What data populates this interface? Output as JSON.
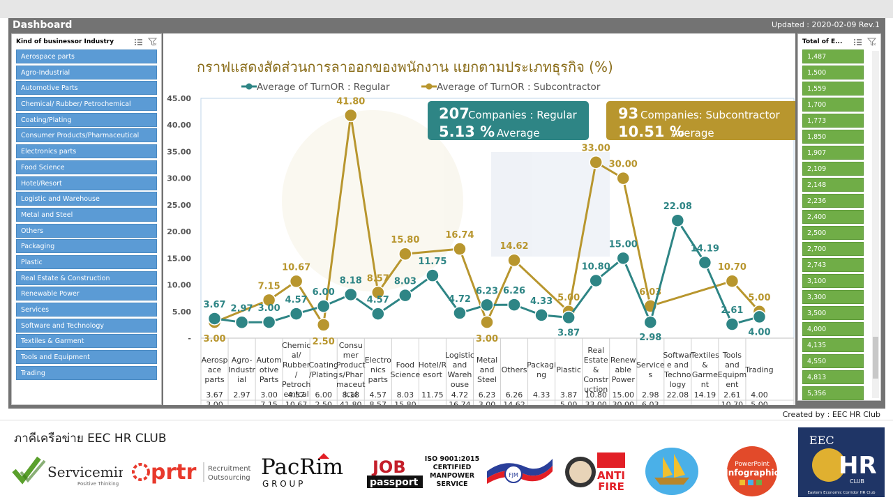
{
  "window": {
    "title": "Dashboard",
    "updated": "Updated : 2020-02-09 Rev.1",
    "created_by": "Created by : EEC HR Club"
  },
  "industry_slicer": {
    "header": "Kind of businessor Industry",
    "items": [
      "Aerospace parts",
      "Agro-Industrial",
      "Automotive Parts",
      "Chemical/ Rubber/ Petrochemical",
      "Coating/Plating",
      "Consumer Products/Pharmaceutical",
      "Electronics parts",
      "Food Science",
      "Hotel/Resort",
      "Logistic and Warehouse",
      "Metal and Steel",
      "Others",
      "Packaging",
      "Plastic",
      "Real Estate & Construction",
      "Renewable Power",
      "Services",
      "Software and Technology",
      "Textiles & Garment",
      "Tools and Equipment",
      "Trading"
    ]
  },
  "total_slicer": {
    "header": "Total of E...",
    "items": [
      "1,487",
      "1,500",
      "1,559",
      "1,700",
      "1,773",
      "1,850",
      "1,907",
      "2,109",
      "2,148",
      "2,236",
      "2,400",
      "2,500",
      "2,700",
      "2,743",
      "3,100",
      "3,300",
      "3,500",
      "4,000",
      "4,135",
      "4,550",
      "4,813",
      "5,356"
    ]
  },
  "cards": {
    "regular": {
      "count": "207",
      "label": "Companies : Regular",
      "avg": "5.13 %",
      "avg_label": "Average",
      "color": "#2e8585"
    },
    "sub": {
      "count": "93",
      "label": "Companies: Subcontractor",
      "avg": "10.51 %",
      "avg_label": "Average",
      "color": "#b8962e"
    }
  },
  "chart_data": {
    "type": "line",
    "title": "กราฟแสดงสัดส่วนการลาออกของพนักงาน แยกตามประเภทธุรกิจ (%)",
    "ylim": [
      0,
      45
    ],
    "yticks": [
      "-",
      "5.00",
      "10.00",
      "15.00",
      "20.00",
      "25.00",
      "30.00",
      "35.00",
      "40.00",
      "45.00"
    ],
    "categories": [
      [
        "Aerosp",
        "ace",
        "parts"
      ],
      [
        "Agro-",
        "Industr",
        "ial"
      ],
      [
        "Autom",
        "otive",
        "Parts"
      ],
      [
        "Chemic",
        "al/",
        "Rubber",
        "/",
        "Petroch",
        "emical"
      ],
      [
        "Coating",
        "/Plating"
      ],
      [
        "Consu",
        "mer",
        "Product",
        "s/Phar",
        "maceut",
        "ical"
      ],
      [
        "Electro",
        "nics",
        "parts"
      ],
      [
        "Food",
        "Science"
      ],
      [
        "Hotel/R",
        "esort"
      ],
      [
        "Logistic",
        "and",
        "Wareh",
        "ouse"
      ],
      [
        "Metal",
        "and",
        "Steel"
      ],
      [
        "Others"
      ],
      [
        "Packagi",
        "ng"
      ],
      [
        "Plastic"
      ],
      [
        "Real",
        "Estate",
        "&",
        "Constr",
        "uction"
      ],
      [
        "Renew",
        "able",
        "Power"
      ],
      [
        "Service",
        "s"
      ],
      [
        "Softwar",
        "e and",
        "Techno",
        "logy"
      ],
      [
        "Textiles",
        "&",
        "Garme",
        "nt"
      ],
      [
        "Tools",
        "and",
        "Equipm",
        "ent"
      ],
      [
        "Trading"
      ]
    ],
    "series": [
      {
        "name": "Average of TurnOR : Regular",
        "color": "#2e8585",
        "values": [
          3.67,
          2.97,
          3.0,
          4.57,
          6.0,
          8.18,
          4.57,
          8.03,
          11.75,
          4.72,
          6.23,
          6.26,
          4.33,
          3.87,
          10.8,
          15.0,
          2.98,
          22.08,
          14.19,
          2.61,
          4.0
        ],
        "labels": [
          "3.67",
          "2.97",
          "3.00",
          "4.57",
          "6.00",
          "8.18",
          "4.57",
          "8.03",
          "11.75",
          "4.72",
          "6.23",
          "6.26",
          "4.33",
          "3.87",
          "10.80",
          "15.00",
          "2.98",
          "22.08",
          "14.19",
          "2.61",
          "4.00"
        ]
      },
      {
        "name": "Average of TurnOR : Subcontractor",
        "color": "#b8962e",
        "values": [
          3.0,
          null,
          7.15,
          10.67,
          2.5,
          41.8,
          8.57,
          15.8,
          null,
          16.74,
          3.0,
          14.62,
          null,
          5.0,
          33.0,
          30.0,
          6.03,
          null,
          null,
          10.7,
          5.0
        ],
        "labels": [
          "3.00",
          "",
          "7.15",
          "10.67",
          "2.50",
          "41.80",
          "8.57",
          "15.80",
          "",
          "16.74",
          "3.00",
          "14.62",
          "",
          "5.00",
          "33.00",
          "30.00",
          "6.03",
          "",
          "",
          "10.70",
          "5.00"
        ]
      }
    ]
  },
  "footer": {
    "title": "ภาคีเครือข่าย EEC HR CLUB",
    "logos": {
      "servicemind": {
        "name": "Servicemind",
        "tag": "Positive Thinking"
      },
      "prtr": {
        "name": "prtr",
        "tag1": "Recruitment",
        "tag2": "Outsourcing"
      },
      "pacrim": {
        "name": "PacRim",
        "tag": "G R O U P"
      },
      "jobpassport": {
        "top": "JOB",
        "bottom": "passport"
      },
      "iso": {
        "line1": "ISO 9001:2015",
        "line2": "CERTIFIED",
        "line3": "MANPOWER",
        "line4": "SERVICE"
      },
      "fjm": {
        "name": "FJM"
      },
      "antifire": {
        "line1": "ANTI",
        "line2": "FIRE"
      },
      "powerpoint": {
        "line1": "PowerPoint",
        "line2": "Infographic"
      },
      "eechr": {
        "top": "EEC",
        "mid": "HR",
        "club": "CLUB",
        "bottom": "Eastern Economic Corridor HR Club"
      }
    }
  }
}
